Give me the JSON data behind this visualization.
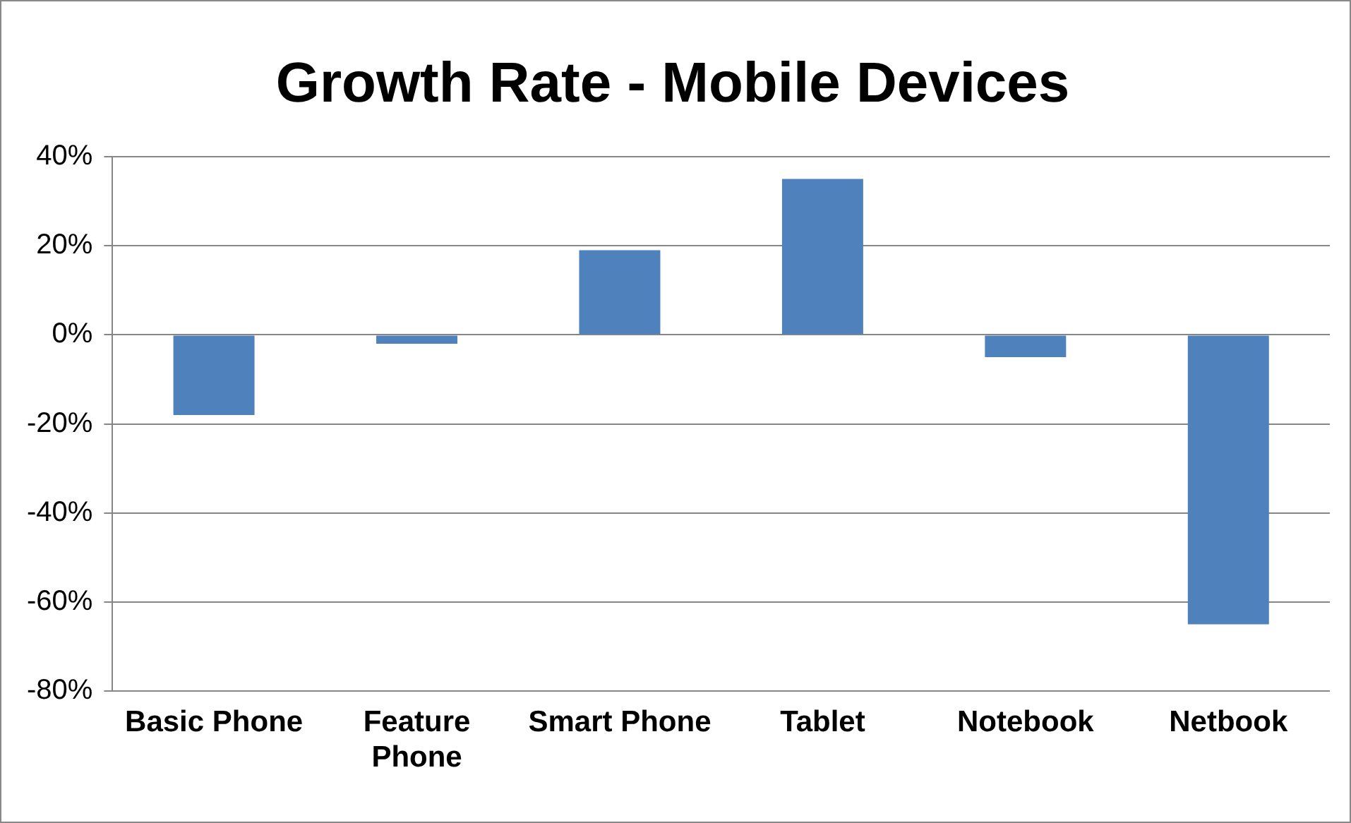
{
  "chart_data": {
    "type": "bar",
    "title": "Growth Rate - Mobile Devices",
    "categories": [
      "Basic Phone",
      "Feature Phone",
      "Smart Phone",
      "Tablet",
      "Notebook",
      "Netbook"
    ],
    "series": [
      {
        "color": "#4f81bd",
        "values": [
          -18,
          -2,
          19,
          35,
          -5,
          -65
        ]
      }
    ],
    "ylim": [
      -80,
      40
    ],
    "yticks": [
      {
        "value": -80,
        "label": "-80%"
      },
      {
        "value": -60,
        "label": "-60%"
      },
      {
        "value": -40,
        "label": "-40%"
      },
      {
        "value": -20,
        "label": "-20%"
      },
      {
        "value": 0,
        "label": "0%"
      },
      {
        "value": 20,
        "label": "20%"
      },
      {
        "value": 40,
        "label": "40%"
      }
    ],
    "grid": "y",
    "legend": false
  }
}
